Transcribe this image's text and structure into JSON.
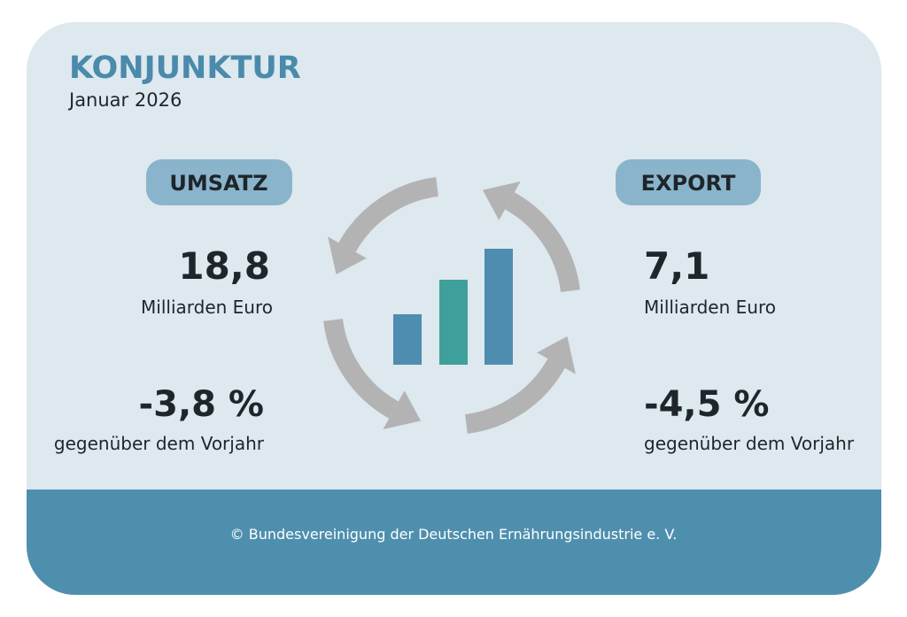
{
  "header": {
    "title": "KONJUNKTUR",
    "subtitle": "Januar 2026"
  },
  "panels": [
    {
      "label": "UMSATZ",
      "value": "18,8",
      "unit": "Milliarden Euro",
      "change": "-3,8 %",
      "change_label": "gegenüber dem Vorjahr"
    },
    {
      "label": "EXPORT",
      "value": "7,1",
      "unit": "Milliarden Euro",
      "change": "-4,5 %",
      "change_label": "gegenüber dem Vorjahr"
    }
  ],
  "footer": "© Bundesvereinigung der Deutschen Ernährungsindustrie e. V."
}
